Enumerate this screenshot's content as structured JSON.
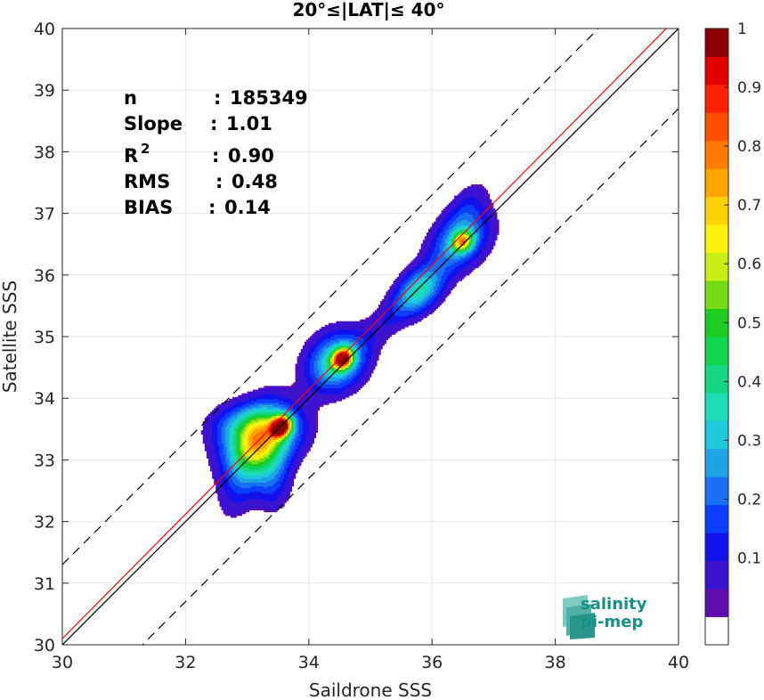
{
  "chart_data": {
    "type": "density-scatter",
    "title": "20°≤|LAT|≤ 40°",
    "xlabel": "Saildrone SSS",
    "ylabel": "Satellite SSS",
    "xlim": [
      30,
      40
    ],
    "ylim": [
      30,
      40
    ],
    "xticks": [
      "30",
      "32",
      "34",
      "36",
      "38",
      "40"
    ],
    "yticks": [
      "30",
      "31",
      "32",
      "33",
      "34",
      "35",
      "36",
      "37",
      "38",
      "39",
      "40"
    ],
    "grid": true,
    "stats": [
      {
        "label": "n",
        "sep": ":",
        "value": "185349"
      },
      {
        "label": "Slope",
        "sep": ":",
        "value": "1.01"
      },
      {
        "label": "R",
        "sup": "2",
        "sep": ":",
        "value": "0.90"
      },
      {
        "label": "RMS",
        "sep": ":",
        "value": "0.48"
      },
      {
        "label": "BIAS",
        "sep": ":",
        "value": "0.14"
      }
    ],
    "reference_lines": {
      "identity": {
        "slope": 1,
        "intercept": 0,
        "color": "#000000"
      },
      "fit": {
        "slope": 1.01,
        "intercept": -0.2,
        "color": "#ff0000"
      },
      "upper_bound": {
        "slope": 1,
        "intercept": 1.3,
        "style": "dashed"
      },
      "lower_bound": {
        "slope": 1,
        "intercept": -1.3,
        "style": "dashed"
      }
    },
    "density_peaks": [
      {
        "x": 33.55,
        "y": 33.55,
        "peak": 1.0
      },
      {
        "x": 34.55,
        "y": 34.65,
        "peak": 0.9
      },
      {
        "x": 35.8,
        "y": 35.75,
        "peak": 0.3
      },
      {
        "x": 36.5,
        "y": 36.55,
        "peak": 0.68
      }
    ],
    "colorbar": {
      "range": [
        0,
        1
      ],
      "labels": [
        "0.1",
        "0.2",
        "0.3",
        "0.4",
        "0.5",
        "0.6",
        "0.7",
        "0.8",
        "0.9",
        "1"
      ],
      "colors": [
        "#ffffff",
        "#5f0bae",
        "#3a13d0",
        "#1212ee",
        "#0b3ffb",
        "#1a6ff2",
        "#1ca4e6",
        "#1dc9dd",
        "#1bdcb4",
        "#16d784",
        "#10d34e",
        "#1ccd1f",
        "#78d915",
        "#c8ee14",
        "#fff30e",
        "#ffd206",
        "#ffa500",
        "#ff7a00",
        "#ff4e00",
        "#ff2200",
        "#e10000",
        "#8b0000"
      ]
    },
    "logo": {
      "line1": "salinity",
      "line2": "pi-mep"
    }
  }
}
